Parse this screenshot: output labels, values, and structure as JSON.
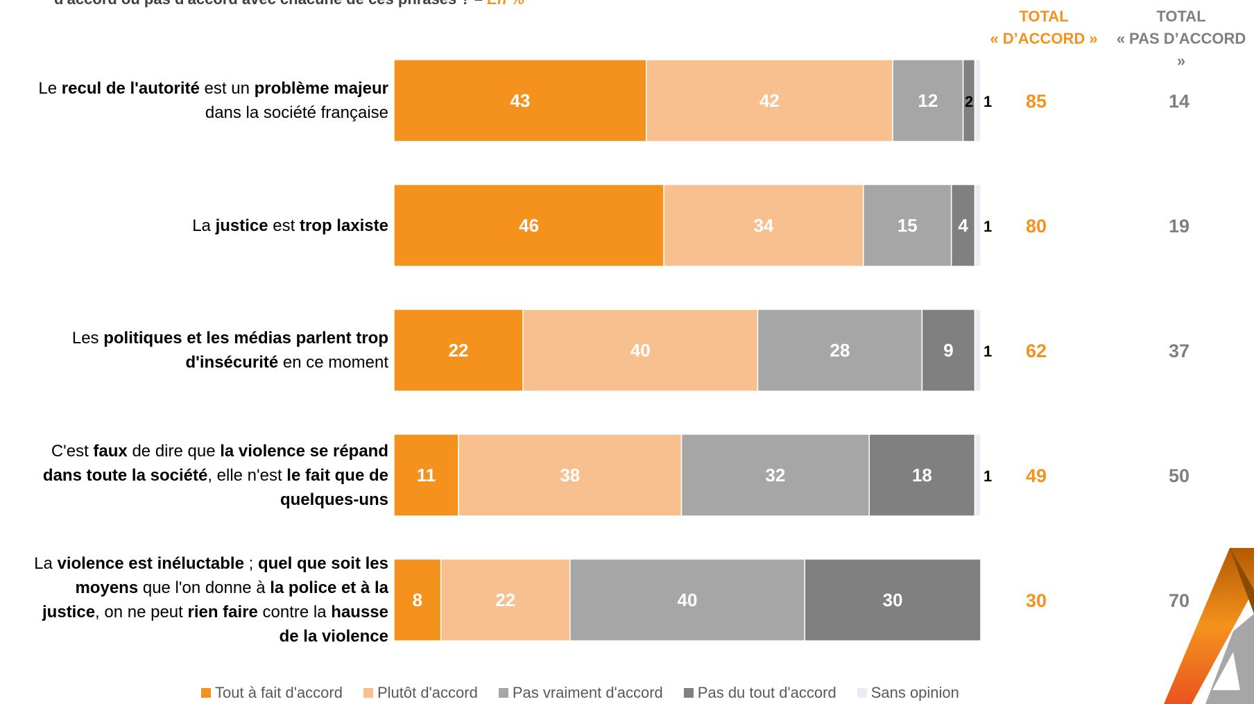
{
  "title": {
    "text": "d'accord ou pas d'accord avec chacune de ces phrases ? – ",
    "unit": "En %"
  },
  "headers": {
    "agree_line1": "TOTAL",
    "agree_line2": "« D’ACCORD »",
    "disagree_line1": "TOTAL",
    "disagree_line2": "« PAS D’ACCORD »"
  },
  "rows": [
    {
      "label": [
        [
          {
            "t": "Le ",
            "b": false
          },
          {
            "t": "recul de l'autorité",
            "b": true
          },
          {
            "t": " est un ",
            "b": false
          },
          {
            "t": "problème majeur",
            "b": true
          }
        ],
        [
          {
            "t": "dans la société française",
            "b": false
          }
        ]
      ]
    },
    {
      "label": [
        [
          {
            "t": "La ",
            "b": false
          },
          {
            "t": "justice",
            "b": true
          },
          {
            "t": " est ",
            "b": false
          },
          {
            "t": "trop laxiste",
            "b": true
          }
        ]
      ]
    },
    {
      "label": [
        [
          {
            "t": "Les ",
            "b": false
          },
          {
            "t": "politiques et les médias parlent trop",
            "b": true
          }
        ],
        [
          {
            "t": "d'insécurité",
            "b": true
          },
          {
            "t": " en ce moment",
            "b": false
          }
        ]
      ]
    },
    {
      "label": [
        [
          {
            "t": "C'est ",
            "b": false
          },
          {
            "t": "faux",
            "b": true
          },
          {
            "t": " de dire que ",
            "b": false
          },
          {
            "t": "la violence se répand",
            "b": true
          }
        ],
        [
          {
            "t": "dans toute la société",
            "b": true
          },
          {
            "t": ", elle n'est ",
            "b": false
          },
          {
            "t": "le fait que de",
            "b": true
          }
        ],
        [
          {
            "t": "quelques-uns",
            "b": true
          }
        ]
      ]
    },
    {
      "label": [
        [
          {
            "t": "La ",
            "b": false
          },
          {
            "t": "violence est inéluctable",
            "b": true
          },
          {
            "t": " ; ",
            "b": false
          },
          {
            "t": "quel que soit les",
            "b": true
          }
        ],
        [
          {
            "t": "moyens",
            "b": true
          },
          {
            "t": " que l'on donne à ",
            "b": false
          },
          {
            "t": "la police et à la",
            "b": true
          }
        ],
        [
          {
            "t": "justice",
            "b": true
          },
          {
            "t": ", on ne peut ",
            "b": false
          },
          {
            "t": "rien faire",
            "b": true
          },
          {
            "t": " contre la ",
            "b": false
          },
          {
            "t": "hausse",
            "b": true
          }
        ],
        [
          {
            "t": "de la violence",
            "b": true
          }
        ]
      ]
    }
  ],
  "chart_data": {
    "type": "bar",
    "orientation": "horizontal",
    "stacked": true,
    "xlim": [
      0,
      100
    ],
    "series": [
      {
        "name": "Tout à fait d'accord",
        "color": "#f5921e",
        "values": [
          43,
          46,
          22,
          11,
          8
        ]
      },
      {
        "name": "Plutôt d'accord",
        "color": "#f9c08f",
        "values": [
          42,
          34,
          40,
          38,
          22
        ]
      },
      {
        "name": "Pas vraiment d'accord",
        "color": "#a6a6a6",
        "values": [
          12,
          15,
          28,
          32,
          40
        ]
      },
      {
        "name": "Pas du tout d'accord",
        "color": "#808080",
        "values": [
          2,
          4,
          9,
          18,
          30
        ]
      },
      {
        "name": "Sans opinion",
        "color": "#e8edf3",
        "values": [
          1,
          1,
          1,
          1,
          0
        ]
      }
    ],
    "total_agree": [
      85,
      80,
      62,
      49,
      30
    ],
    "total_disagree": [
      14,
      19,
      37,
      50,
      70
    ],
    "legend_position": "bottom"
  },
  "colors": {
    "accent": "#f5921e",
    "total_disagree": "#7f7f7f",
    "label_dark": "#000000"
  },
  "icons": {
    "logo": "ifop-triangle-logo"
  }
}
